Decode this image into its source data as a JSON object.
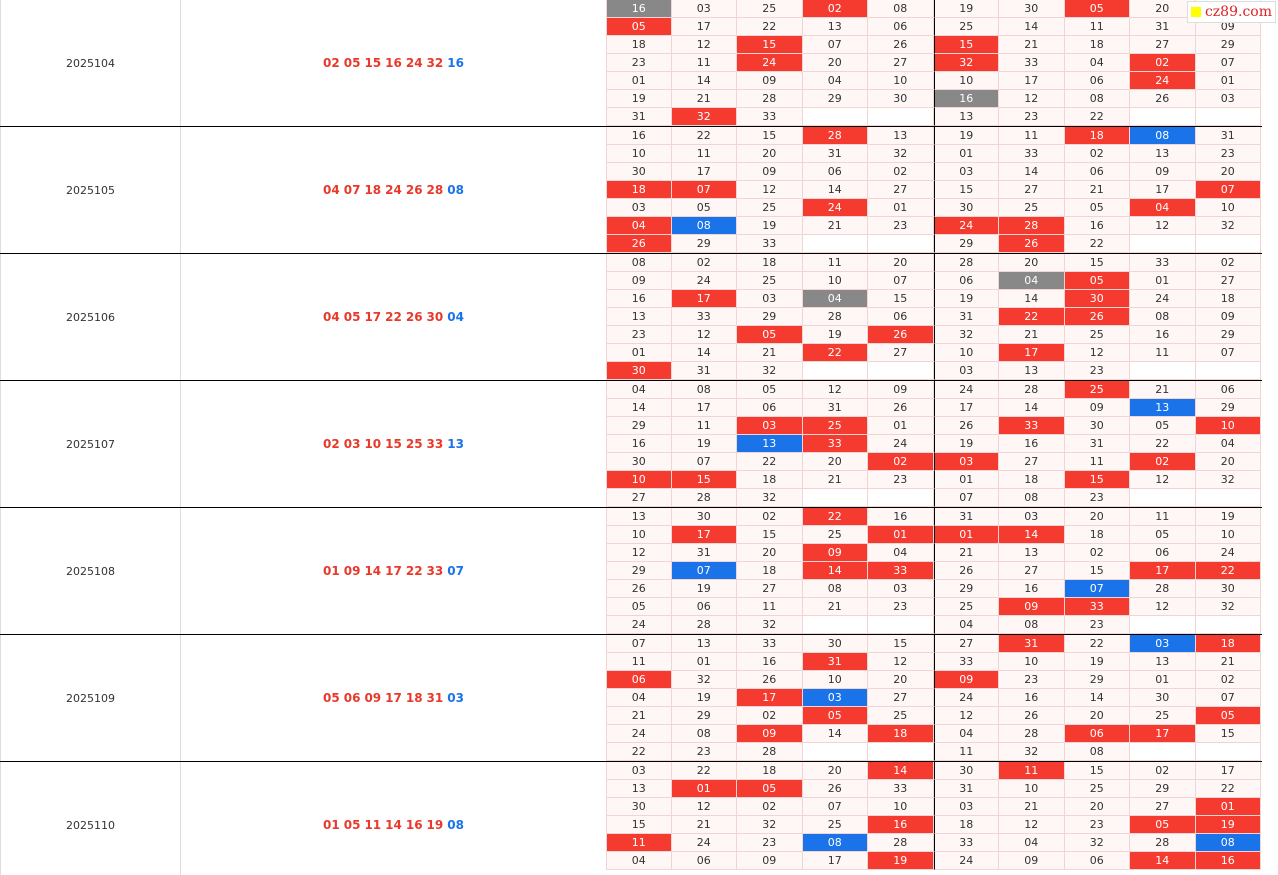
{
  "watermark": "cz89.com",
  "periods": [
    {
      "issue": "2025104",
      "reds": [
        "02",
        "05",
        "15",
        "16",
        "24",
        "32"
      ],
      "blue": "16",
      "rows": [
        [
          "16",
          "03",
          "25",
          "02",
          "08",
          "19",
          "30",
          "05",
          "20",
          null
        ],
        [
          "05",
          "17",
          "22",
          "13",
          "06",
          "25",
          "14",
          "11",
          "31",
          "09"
        ],
        [
          "18",
          "12",
          "15",
          "07",
          "26",
          "15",
          "21",
          "18",
          "27",
          "29"
        ],
        [
          "23",
          "11",
          "24",
          "20",
          "27",
          "32",
          "33",
          "04",
          "02",
          "07"
        ],
        [
          "01",
          "14",
          "09",
          "04",
          "10",
          "10",
          "17",
          "06",
          "24",
          "01"
        ],
        [
          "19",
          "21",
          "28",
          "29",
          "30",
          "16",
          "12",
          "08",
          "26",
          "03"
        ],
        [
          "31",
          "32",
          "33",
          null,
          null,
          "13",
          "23",
          "22",
          null,
          null
        ]
      ],
      "states": [
        "gnnrnnnrne",
        "rnnnnnnnnn",
        "nnrnnrnnnn",
        "nnrnnrnnrn",
        "nnnnnnnnrn",
        "nnnnngnnnn",
        "nrneennnee"
      ]
    },
    {
      "issue": "2025105",
      "reds": [
        "04",
        "07",
        "18",
        "24",
        "26",
        "28"
      ],
      "blue": "08",
      "rows": [
        [
          "16",
          "22",
          "15",
          "28",
          "13",
          "19",
          "11",
          "18",
          "08",
          "31"
        ],
        [
          "10",
          "11",
          "20",
          "31",
          "32",
          "01",
          "33",
          "02",
          "13",
          "23"
        ],
        [
          "30",
          "17",
          "09",
          "06",
          "02",
          "03",
          "14",
          "06",
          "09",
          "20"
        ],
        [
          "18",
          "07",
          "12",
          "14",
          "27",
          "15",
          "27",
          "21",
          "17",
          "07"
        ],
        [
          "03",
          "05",
          "25",
          "24",
          "01",
          "30",
          "25",
          "05",
          "04",
          "10"
        ],
        [
          "04",
          "08",
          "19",
          "21",
          "23",
          "24",
          "28",
          "16",
          "12",
          "32"
        ],
        [
          "26",
          "29",
          "33",
          null,
          null,
          "29",
          "26",
          "22",
          null,
          null
        ]
      ],
      "states": [
        "nnnrnnnrbn",
        "nnnnnnnnnn",
        "nnnnnnnnnn",
        "rrnnnnnnnr",
        "nnnrnnnnrn",
        "rbnnnrrnnn",
        "rnneenrnee"
      ]
    },
    {
      "issue": "2025106",
      "reds": [
        "04",
        "05",
        "17",
        "22",
        "26",
        "30"
      ],
      "blue": "04",
      "rows": [
        [
          "08",
          "02",
          "18",
          "11",
          "20",
          "28",
          "20",
          "15",
          "33",
          "02"
        ],
        [
          "09",
          "24",
          "25",
          "10",
          "07",
          "06",
          "04",
          "05",
          "01",
          "27"
        ],
        [
          "16",
          "17",
          "03",
          "04",
          "15",
          "19",
          "14",
          "30",
          "24",
          "18"
        ],
        [
          "13",
          "33",
          "29",
          "28",
          "06",
          "31",
          "22",
          "26",
          "08",
          "09"
        ],
        [
          "23",
          "12",
          "05",
          "19",
          "26",
          "32",
          "21",
          "25",
          "16",
          "29"
        ],
        [
          "01",
          "14",
          "21",
          "22",
          "27",
          "10",
          "17",
          "12",
          "11",
          "07"
        ],
        [
          "30",
          "31",
          "32",
          null,
          null,
          "03",
          "13",
          "23",
          null,
          null
        ]
      ],
      "states": [
        "nnnnnnnnnn",
        "nnnnnngrnn",
        "nrngnnnrnn",
        "nnnnnnrrnn",
        "nnrnrnnnnn",
        "nnnrnnrnnn",
        "rnneennnee"
      ]
    },
    {
      "issue": "2025107",
      "reds": [
        "02",
        "03",
        "10",
        "15",
        "25",
        "33"
      ],
      "blue": "13",
      "rows": [
        [
          "04",
          "08",
          "05",
          "12",
          "09",
          "24",
          "28",
          "25",
          "21",
          "06"
        ],
        [
          "14",
          "17",
          "06",
          "31",
          "26",
          "17",
          "14",
          "09",
          "13",
          "29"
        ],
        [
          "29",
          "11",
          "03",
          "25",
          "01",
          "26",
          "33",
          "30",
          "05",
          "10"
        ],
        [
          "16",
          "19",
          "13",
          "33",
          "24",
          "19",
          "16",
          "31",
          "22",
          "04"
        ],
        [
          "30",
          "07",
          "22",
          "20",
          "02",
          "03",
          "27",
          "11",
          "02",
          "20"
        ],
        [
          "10",
          "15",
          "18",
          "21",
          "23",
          "01",
          "18",
          "15",
          "12",
          "32"
        ],
        [
          "27",
          "28",
          "32",
          null,
          null,
          "07",
          "08",
          "23",
          null,
          null
        ]
      ],
      "states": [
        "nnnnnnnrnn",
        "nnnnnnnnbn",
        "nnrrnnrnnr",
        "nnbrnnnnnn",
        "nnnnrrnnrn",
        "rrnnnnnrnn",
        "nnneennnee"
      ]
    },
    {
      "issue": "2025108",
      "reds": [
        "01",
        "09",
        "14",
        "17",
        "22",
        "33"
      ],
      "blue": "07",
      "rows": [
        [
          "13",
          "30",
          "02",
          "22",
          "16",
          "31",
          "03",
          "20",
          "11",
          "19"
        ],
        [
          "10",
          "17",
          "15",
          "25",
          "01",
          "01",
          "14",
          "18",
          "05",
          "10"
        ],
        [
          "12",
          "31",
          "20",
          "09",
          "04",
          "21",
          "13",
          "02",
          "06",
          "24"
        ],
        [
          "29",
          "07",
          "18",
          "14",
          "33",
          "26",
          "27",
          "15",
          "17",
          "22"
        ],
        [
          "26",
          "19",
          "27",
          "08",
          "03",
          "29",
          "16",
          "07",
          "28",
          "30"
        ],
        [
          "05",
          "06",
          "11",
          "21",
          "23",
          "25",
          "09",
          "33",
          "12",
          "32"
        ],
        [
          "24",
          "28",
          "32",
          null,
          null,
          "04",
          "08",
          "23",
          null,
          null
        ]
      ],
      "states": [
        "nnnrnnnnnn",
        "nrnnrrrnnn",
        "nnnrnnnnnn",
        "nbnrrnnnrr",
        "nnnnnnnbnn",
        "nnnnnnrrnn",
        "nnneennnee"
      ]
    },
    {
      "issue": "2025109",
      "reds": [
        "05",
        "06",
        "09",
        "17",
        "18",
        "31"
      ],
      "blue": "03",
      "rows": [
        [
          "07",
          "13",
          "33",
          "30",
          "15",
          "27",
          "31",
          "22",
          "03",
          "18"
        ],
        [
          "11",
          "01",
          "16",
          "31",
          "12",
          "33",
          "10",
          "19",
          "13",
          "21"
        ],
        [
          "06",
          "32",
          "26",
          "10",
          "20",
          "09",
          "23",
          "29",
          "01",
          "02"
        ],
        [
          "04",
          "19",
          "17",
          "03",
          "27",
          "24",
          "16",
          "14",
          "30",
          "07"
        ],
        [
          "21",
          "29",
          "02",
          "05",
          "25",
          "12",
          "26",
          "20",
          "25",
          "05"
        ],
        [
          "24",
          "08",
          "09",
          "14",
          "18",
          "04",
          "28",
          "06",
          "17",
          "15"
        ],
        [
          "22",
          "23",
          "28",
          null,
          null,
          "11",
          "32",
          "08",
          null,
          null
        ]
      ],
      "states": [
        "nnnnnnrnbr",
        "nnnrnnnnnn",
        "rnnnnrnnnn",
        "nnrbnnnnnn",
        "nnnrnnnnnr",
        "nnrnrnnrrn",
        "nnneennnee"
      ]
    },
    {
      "issue": "2025110",
      "reds": [
        "01",
        "05",
        "11",
        "14",
        "16",
        "19"
      ],
      "blue": "08",
      "rows": [
        [
          "03",
          "22",
          "18",
          "20",
          "14",
          "30",
          "11",
          "15",
          "02",
          "17"
        ],
        [
          "13",
          "01",
          "05",
          "26",
          "33",
          "31",
          "10",
          "25",
          "29",
          "22"
        ],
        [
          "30",
          "12",
          "02",
          "07",
          "10",
          "03",
          "21",
          "20",
          "27",
          "01"
        ],
        [
          "15",
          "21",
          "32",
          "25",
          "16",
          "18",
          "12",
          "23",
          "05",
          "19"
        ],
        [
          "11",
          "24",
          "23",
          "08",
          "28",
          "33",
          "04",
          "32",
          "28",
          "08"
        ],
        [
          "04",
          "06",
          "09",
          "17",
          "19",
          "24",
          "09",
          "06",
          "14",
          "16"
        ]
      ],
      "states": [
        "nnnnrnrnnn",
        "nrrnnnnnnn",
        "nnnnnnnnnr",
        "nnnnrnnnrr",
        "rnnbnnnnnb",
        "nnnnrnnnrr"
      ]
    }
  ]
}
